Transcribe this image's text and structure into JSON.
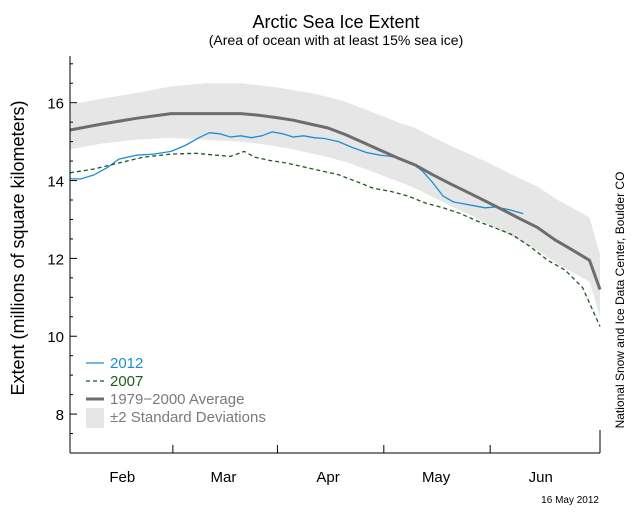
{
  "chart_data": {
    "type": "line",
    "title": "Arctic Sea Ice Extent",
    "subtitle": "(Area of ocean with at least 15% sea ice)",
    "xlabel": "",
    "ylabel": "Extent (millions of square kilometers)",
    "ylim": [
      7,
      17.2
    ],
    "yticks": [
      8,
      10,
      12,
      14,
      16
    ],
    "ytick_labels": [
      "8",
      "10",
      "12",
      "14",
      "16"
    ],
    "xlim": [
      1,
      153
    ],
    "xticks": [
      16,
      45,
      75,
      106,
      136
    ],
    "xtick_labels": [
      "Feb",
      "Mar",
      "Apr",
      "May",
      "Jun"
    ],
    "grid": false,
    "legend_position": "bottom-left",
    "credit": "National Snow and Ice Data Center, Boulder CO",
    "date_stamp": "16 May 2012",
    "series": [
      {
        "name": "2012",
        "style": "solid",
        "color": "#1a8fd8",
        "x": [
          1,
          4,
          8,
          12,
          15,
          20,
          25,
          30,
          34,
          38,
          41,
          44,
          47,
          50,
          53,
          56,
          59,
          62,
          65,
          68,
          71,
          74,
          78,
          82,
          86,
          90,
          93,
          96,
          99,
          102,
          105,
          108,
          111,
          114,
          117,
          120,
          123,
          127,
          131,
          135
        ],
        "y": [
          14.05,
          14.04,
          14.15,
          14.35,
          14.55,
          14.65,
          14.68,
          14.75,
          14.9,
          15.1,
          15.23,
          15.2,
          15.12,
          15.15,
          15.1,
          15.15,
          15.25,
          15.2,
          15.12,
          15.15,
          15.1,
          15.08,
          15.0,
          14.85,
          14.72,
          14.65,
          14.62,
          14.55,
          14.45,
          14.25,
          13.95,
          13.6,
          13.45,
          13.4,
          13.35,
          13.3,
          13.32,
          13.25,
          13.15,
          null
        ]
      },
      {
        "name": "2007",
        "style": "dashed",
        "color": "#1e5a1e",
        "x": [
          1,
          8,
          15,
          22,
          30,
          37,
          43,
          47,
          51,
          54,
          58,
          63,
          68,
          73,
          78,
          83,
          88,
          93,
          98,
          103,
          108,
          113,
          118,
          123,
          128,
          133,
          138,
          143,
          148,
          153
        ],
        "y": [
          14.2,
          14.3,
          14.45,
          14.6,
          14.68,
          14.7,
          14.65,
          14.62,
          14.75,
          14.6,
          14.52,
          14.45,
          14.35,
          14.25,
          14.15,
          13.98,
          13.8,
          13.72,
          13.6,
          13.42,
          13.3,
          13.15,
          12.95,
          12.78,
          12.6,
          12.3,
          11.95,
          11.7,
          11.25,
          10.25
        ]
      },
      {
        "name": "1979−2000 Average",
        "style": "solid-thick",
        "color": "#6d6d6d",
        "x": [
          1,
          10,
          20,
          30,
          40,
          45,
          50,
          55,
          60,
          65,
          70,
          75,
          80,
          85,
          90,
          95,
          100,
          105,
          110,
          115,
          120,
          125,
          130,
          135,
          140,
          145,
          150,
          153
        ],
        "y": [
          15.3,
          15.45,
          15.6,
          15.72,
          15.72,
          15.72,
          15.72,
          15.68,
          15.62,
          15.55,
          15.45,
          15.35,
          15.18,
          14.98,
          14.78,
          14.58,
          14.4,
          14.15,
          13.92,
          13.7,
          13.48,
          13.25,
          13.02,
          12.8,
          12.48,
          12.22,
          11.95,
          11.2
        ]
      }
    ],
    "band": {
      "name": "±2 Standard Deviations",
      "color": "#e6e6e6",
      "x": [
        1,
        10,
        20,
        30,
        40,
        45,
        50,
        55,
        60,
        65,
        70,
        75,
        80,
        85,
        90,
        95,
        100,
        105,
        110,
        115,
        120,
        125,
        130,
        135,
        140,
        145,
        150,
        153
      ],
      "upper": [
        15.95,
        16.1,
        16.25,
        16.42,
        16.5,
        16.5,
        16.5,
        16.45,
        16.4,
        16.32,
        16.25,
        16.15,
        16.02,
        15.85,
        15.68,
        15.5,
        15.35,
        15.12,
        14.9,
        14.7,
        14.5,
        14.28,
        14.05,
        13.85,
        13.55,
        13.3,
        13.05,
        12.1
      ],
      "lower": [
        14.8,
        14.95,
        15.05,
        15.1,
        15.05,
        15.02,
        15.0,
        14.95,
        14.88,
        14.8,
        14.7,
        14.6,
        14.48,
        14.32,
        14.15,
        13.98,
        13.8,
        13.58,
        13.35,
        13.15,
        12.92,
        12.68,
        12.45,
        12.22,
        11.9,
        11.65,
        11.4,
        10.5
      ]
    }
  }
}
